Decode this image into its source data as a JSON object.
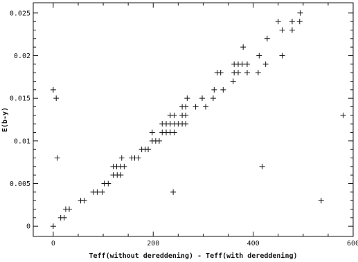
{
  "chart_data": {
    "type": "scatter",
    "title": "",
    "xlabel": "Teff(without dereddening) - Teff(with dereddening)",
    "ylabel": "E(b-y)",
    "xlim": [
      -40,
      600
    ],
    "ylim": [
      -0.0012,
      0.0262
    ],
    "grid": false,
    "marker": "plus",
    "x_ticks": [
      0,
      200,
      400,
      600
    ],
    "x_tick_labels": [
      "0",
      "200",
      "400",
      "600"
    ],
    "y_ticks": [
      0,
      0.005,
      0.01,
      0.015,
      0.02,
      0.025
    ],
    "y_tick_labels": [
      "0",
      "0.005",
      "0.01",
      "0.015",
      "0.02",
      "0.025"
    ],
    "points": [
      {
        "x": 0,
        "y": 0.0
      },
      {
        "x": 15,
        "y": 0.001
      },
      {
        "x": 22,
        "y": 0.001
      },
      {
        "x": 25,
        "y": 0.002
      },
      {
        "x": 32,
        "y": 0.002
      },
      {
        "x": 55,
        "y": 0.003
      },
      {
        "x": 62,
        "y": 0.003
      },
      {
        "x": 80,
        "y": 0.004
      },
      {
        "x": 88,
        "y": 0.004
      },
      {
        "x": 98,
        "y": 0.004
      },
      {
        "x": 102,
        "y": 0.005
      },
      {
        "x": 110,
        "y": 0.005
      },
      {
        "x": 120,
        "y": 0.006
      },
      {
        "x": 128,
        "y": 0.006
      },
      {
        "x": 135,
        "y": 0.006
      },
      {
        "x": 120,
        "y": 0.007
      },
      {
        "x": 127,
        "y": 0.007
      },
      {
        "x": 135,
        "y": 0.007
      },
      {
        "x": 142,
        "y": 0.007
      },
      {
        "x": 137,
        "y": 0.008
      },
      {
        "x": 157,
        "y": 0.008
      },
      {
        "x": 163,
        "y": 0.008
      },
      {
        "x": 170,
        "y": 0.008
      },
      {
        "x": 177,
        "y": 0.009
      },
      {
        "x": 184,
        "y": 0.009
      },
      {
        "x": 190,
        "y": 0.009
      },
      {
        "x": 198,
        "y": 0.01
      },
      {
        "x": 205,
        "y": 0.01
      },
      {
        "x": 212,
        "y": 0.01
      },
      {
        "x": 198,
        "y": 0.011
      },
      {
        "x": 218,
        "y": 0.011
      },
      {
        "x": 226,
        "y": 0.011
      },
      {
        "x": 234,
        "y": 0.011
      },
      {
        "x": 242,
        "y": 0.011
      },
      {
        "x": 218,
        "y": 0.012
      },
      {
        "x": 226,
        "y": 0.012
      },
      {
        "x": 234,
        "y": 0.012
      },
      {
        "x": 242,
        "y": 0.012
      },
      {
        "x": 250,
        "y": 0.012
      },
      {
        "x": 258,
        "y": 0.012
      },
      {
        "x": 265,
        "y": 0.012
      },
      {
        "x": 234,
        "y": 0.013
      },
      {
        "x": 242,
        "y": 0.013
      },
      {
        "x": 258,
        "y": 0.013
      },
      {
        "x": 265,
        "y": 0.013
      },
      {
        "x": 258,
        "y": 0.014
      },
      {
        "x": 265,
        "y": 0.014
      },
      {
        "x": 285,
        "y": 0.014
      },
      {
        "x": 305,
        "y": 0.014
      },
      {
        "x": 268,
        "y": 0.015
      },
      {
        "x": 298,
        "y": 0.015
      },
      {
        "x": 320,
        "y": 0.015
      },
      {
        "x": 322,
        "y": 0.016
      },
      {
        "x": 340,
        "y": 0.016
      },
      {
        "x": 360,
        "y": 0.017
      },
      {
        "x": 328,
        "y": 0.018
      },
      {
        "x": 335,
        "y": 0.018
      },
      {
        "x": 362,
        "y": 0.018
      },
      {
        "x": 370,
        "y": 0.018
      },
      {
        "x": 388,
        "y": 0.018
      },
      {
        "x": 410,
        "y": 0.018
      },
      {
        "x": 362,
        "y": 0.019
      },
      {
        "x": 370,
        "y": 0.019
      },
      {
        "x": 378,
        "y": 0.019
      },
      {
        "x": 388,
        "y": 0.019
      },
      {
        "x": 425,
        "y": 0.019
      },
      {
        "x": 412,
        "y": 0.02
      },
      {
        "x": 458,
        "y": 0.02
      },
      {
        "x": 380,
        "y": 0.021
      },
      {
        "x": 428,
        "y": 0.022
      },
      {
        "x": 458,
        "y": 0.023
      },
      {
        "x": 478,
        "y": 0.023
      },
      {
        "x": 450,
        "y": 0.024
      },
      {
        "x": 478,
        "y": 0.024
      },
      {
        "x": 493,
        "y": 0.024
      },
      {
        "x": 494,
        "y": 0.025
      },
      {
        "x": 0,
        "y": 0.016
      },
      {
        "x": 6,
        "y": 0.015
      },
      {
        "x": 8,
        "y": 0.008
      },
      {
        "x": 240,
        "y": 0.004
      },
      {
        "x": 418,
        "y": 0.007
      },
      {
        "x": 536,
        "y": 0.003
      },
      {
        "x": 580,
        "y": 0.013
      }
    ]
  }
}
